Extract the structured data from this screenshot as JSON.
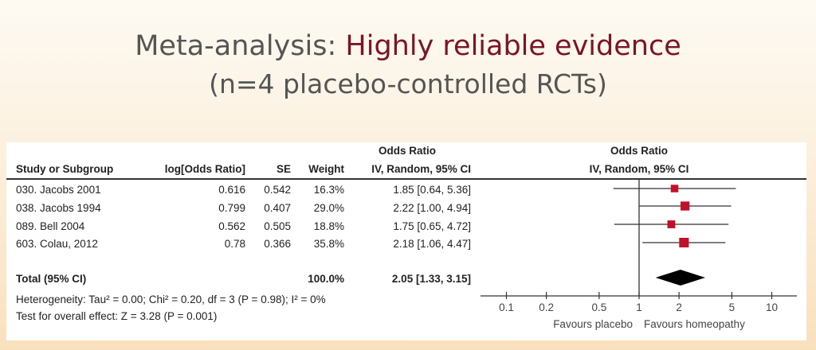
{
  "slide": {
    "title_prefix": "Meta-analysis: ",
    "title_accent": "Highly reliable evidence",
    "subtitle": "(n=4 placebo-controlled RCTs)",
    "accent_color": "#7b1526"
  },
  "table": {
    "headers": {
      "study": "Study or Subgroup",
      "log_or": "log[Odds Ratio]",
      "se": "SE",
      "weight": "Weight",
      "or_top": "Odds Ratio",
      "or_bottom": "IV, Random, 95% CI",
      "plot_top": "Odds Ratio",
      "plot_bottom": "IV, Random, 95% CI"
    },
    "rows": [
      {
        "study": "030. Jacobs 2001",
        "log_or": "0.616",
        "se": "0.542",
        "weight": "16.3%",
        "or_ci": "1.85 [0.64, 5.36]"
      },
      {
        "study": "038. Jacobs 1994",
        "log_or": "0.799",
        "se": "0.407",
        "weight": "29.0%",
        "or_ci": "2.22 [1.00, 4.94]"
      },
      {
        "study": "089. Bell 2004",
        "log_or": "0.562",
        "se": "0.505",
        "weight": "18.8%",
        "or_ci": "1.75 [0.65, 4.72]"
      },
      {
        "study": "603. Colau, 2012",
        "log_or": "0.78",
        "se": "0.366",
        "weight": "35.8%",
        "or_ci": "2.18 [1.06, 4.47]"
      }
    ],
    "total": {
      "label": "Total (95% CI)",
      "weight": "100.0%",
      "or_ci": "2.05 [1.33, 3.15]"
    },
    "heterogeneity": "Heterogeneity: Tau² = 0.00; Chi² = 0.20, df = 3 (P = 0.98); I² = 0%",
    "overall_effect": "Test for overall effect: Z = 3.28 (P = 0.001)"
  },
  "chart_data": {
    "type": "forest",
    "x_scale": "log",
    "xlim": [
      0.1,
      10
    ],
    "x_ticks": [
      0.1,
      0.2,
      0.5,
      1,
      2,
      5,
      10
    ],
    "x_tick_labels": [
      "0.1",
      "0.2",
      "0.5",
      "1",
      "2",
      "5",
      "10"
    ],
    "reference_line": 1,
    "left_label": "Favours placebo",
    "right_label": "Favours homeopathy",
    "studies": [
      {
        "name": "030. Jacobs 2001",
        "or": 1.85,
        "lower": 0.64,
        "upper": 5.36,
        "weight": 16.3
      },
      {
        "name": "038. Jacobs 1994",
        "or": 2.22,
        "lower": 1.0,
        "upper": 4.94,
        "weight": 29.0
      },
      {
        "name": "089. Bell 2004",
        "or": 1.75,
        "lower": 0.65,
        "upper": 4.72,
        "weight": 18.8
      },
      {
        "name": "603. Colau, 2012",
        "or": 2.18,
        "lower": 1.06,
        "upper": 4.47,
        "weight": 35.8
      }
    ],
    "pooled": {
      "or": 2.05,
      "lower": 1.33,
      "upper": 3.15
    },
    "marker_color": "#c0102a"
  }
}
